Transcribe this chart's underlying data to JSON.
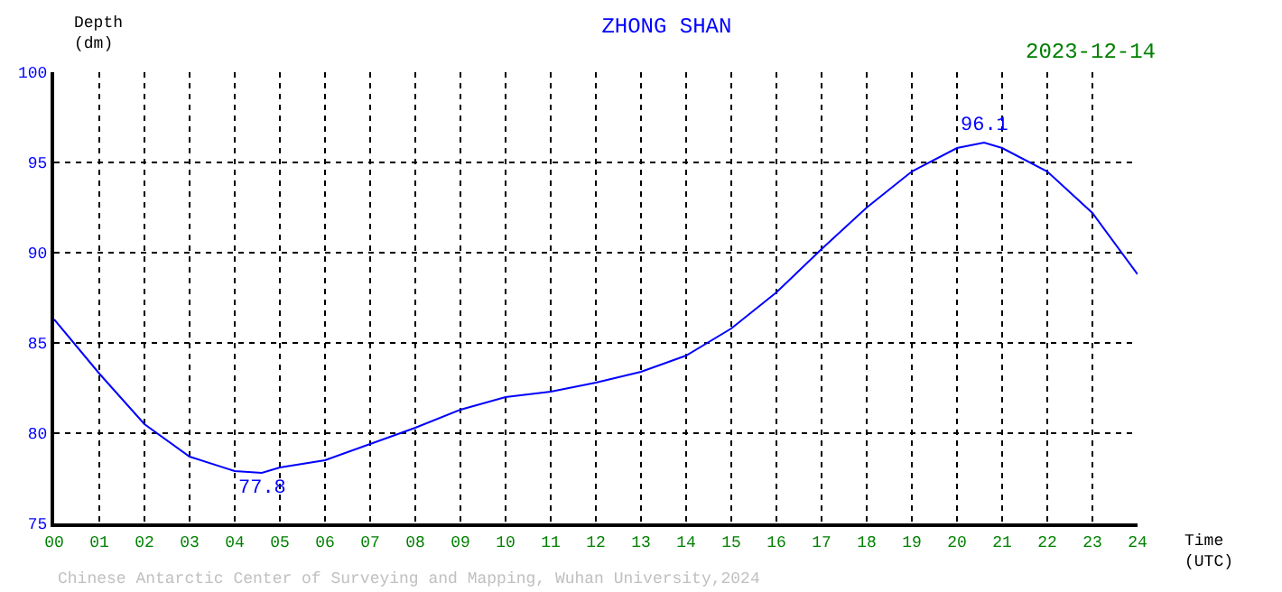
{
  "chart_data": {
    "type": "line",
    "title": "ZHONG SHAN",
    "xlabel": "Time\n(UTC)",
    "ylabel": "Depth\n(dm)",
    "x": [
      0,
      1,
      2,
      3,
      4,
      4.6,
      5,
      6,
      7,
      8,
      9,
      10,
      11,
      12,
      13,
      14,
      15,
      16,
      17,
      18,
      19,
      20,
      20.6,
      21,
      22,
      23,
      24
    ],
    "series": [
      {
        "color": "#0000ff",
        "values": [
          86.3,
          83.3,
          80.5,
          78.7,
          77.9,
          77.8,
          78.1,
          78.5,
          79.4,
          80.3,
          81.3,
          82.0,
          82.3,
          82.8,
          83.4,
          84.3,
          85.8,
          87.8,
          90.2,
          92.5,
          94.5,
          95.8,
          96.1,
          95.8,
          94.5,
          92.2,
          88.8
        ]
      }
    ],
    "xlim": [
      0,
      24
    ],
    "ylim": [
      75,
      100
    ],
    "xticks": [
      {
        "value": 0,
        "label": "00"
      },
      {
        "value": 1,
        "label": "01"
      },
      {
        "value": 2,
        "label": "02"
      },
      {
        "value": 3,
        "label": "03"
      },
      {
        "value": 4,
        "label": "04"
      },
      {
        "value": 5,
        "label": "05"
      },
      {
        "value": 6,
        "label": "06"
      },
      {
        "value": 7,
        "label": "07"
      },
      {
        "value": 8,
        "label": "08"
      },
      {
        "value": 9,
        "label": "09"
      },
      10,
      11,
      12,
      13,
      14,
      15,
      16,
      17,
      18,
      19,
      20,
      21,
      22,
      23,
      24
    ],
    "yticks": [
      75,
      80,
      85,
      90,
      95,
      100
    ],
    "grid": true,
    "line_style": "solid",
    "annotations": [
      {
        "text": "77.8",
        "x": 4.6,
        "y": 77.8
      },
      {
        "text": "96.1",
        "x": 20.6,
        "y": 96.1
      },
      "2023-12-14",
      "Chinese Antarctic Center of Surveying and Mapping, Wuhan University,2024"
    ]
  }
}
